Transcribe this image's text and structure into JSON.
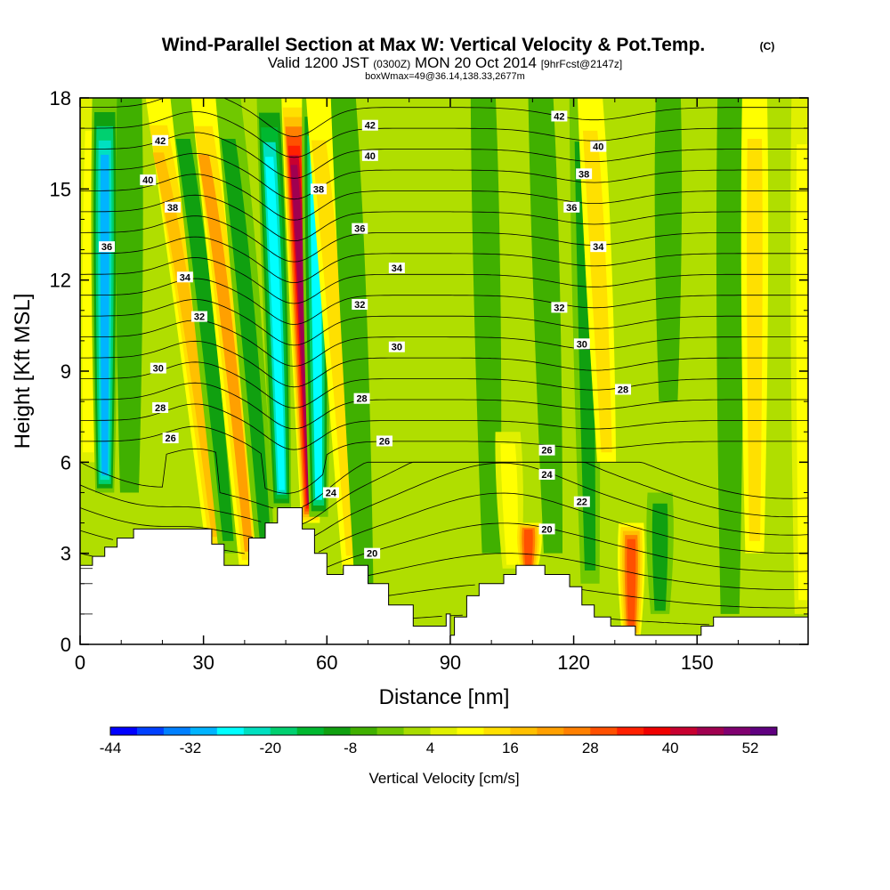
{
  "chart_data": {
    "type": "heatmap",
    "title": "Wind-Parallel Section at Max W: Vertical Velocity & Pot.Temp.",
    "title_mark": "(C)",
    "subtitle_prefix": "Valid 1200 JST",
    "subtitle_utc": "(0300Z)",
    "subtitle_date": "MON 20 Oct 2014",
    "subtitle_fcst": "[9hrFcst@2147z]",
    "subtitle2": "boxWmax=49@36.14,138.33,2677m",
    "xlabel": "Distance [nm]",
    "ylabel": "Height [Kft MSL]",
    "xlim": [
      0,
      177
    ],
    "ylim": [
      0,
      18
    ],
    "x_ticks": [
      "0",
      "30",
      "60",
      "90",
      "120",
      "150"
    ],
    "x_tick_values": [
      0,
      30,
      60,
      90,
      120,
      150
    ],
    "y_ticks": [
      "0",
      "3",
      "6",
      "9",
      "12",
      "15",
      "18"
    ],
    "y_tick_values": [
      0,
      3,
      6,
      9,
      12,
      15,
      18
    ],
    "colorbar": {
      "label": "Vertical Velocity [cm/s]",
      "tick_labels": [
        "-44",
        "-32",
        "-20",
        "-8",
        "4",
        "16",
        "28",
        "40",
        "52"
      ],
      "min": -44,
      "max": 56,
      "step": 4,
      "colors": [
        "#0000ff",
        "#0040ff",
        "#0080ff",
        "#00b4ff",
        "#00ffff",
        "#00e0c0",
        "#00d070",
        "#00b830",
        "#10a010",
        "#40b000",
        "#70c800",
        "#a8dc00",
        "#e0f000",
        "#ffff00",
        "#ffe000",
        "#ffc000",
        "#ffa000",
        "#ff8000",
        "#ff5000",
        "#ff2000",
        "#f00000",
        "#c80030",
        "#a00050",
        "#800070",
        "#600080"
      ]
    },
    "streaks": [
      {
        "x_bottom": 2,
        "x_top": 3,
        "y_bottom": 6,
        "y_top": 18,
        "w": 9
      },
      {
        "x_bottom": 6,
        "x_top": 6,
        "y_bottom": 5,
        "y_top": 18,
        "w": -30
      },
      {
        "x_bottom": 12,
        "x_top": 12,
        "y_bottom": 5,
        "y_top": 18,
        "w": -6
      },
      {
        "x_bottom": 33,
        "x_top": 19,
        "y_bottom": 3,
        "y_top": 18,
        "w": 18
      },
      {
        "x_bottom": 36,
        "x_top": 25,
        "y_bottom": 3,
        "y_top": 18,
        "w": -10
      },
      {
        "x_bottom": 41,
        "x_top": 30,
        "y_bottom": 2.5,
        "y_top": 18,
        "w": 20
      },
      {
        "x_bottom": 45,
        "x_top": 36,
        "y_bottom": 3,
        "y_top": 18,
        "w": -12
      },
      {
        "x_bottom": 49,
        "x_top": 46,
        "y_bottom": 4.5,
        "y_top": 18,
        "w": -28
      },
      {
        "x_bottom": 56,
        "x_top": 52,
        "y_bottom": 4,
        "y_top": 18,
        "w": 46
      },
      {
        "x_bottom": 58,
        "x_top": 57,
        "y_bottom": 4.2,
        "y_top": 18,
        "w": -26
      },
      {
        "x_bottom": 66,
        "x_top": 58,
        "y_bottom": 2.5,
        "y_top": 18,
        "w": 14
      },
      {
        "x_bottom": 69,
        "x_top": 64,
        "y_bottom": 2,
        "y_top": 18,
        "w": -6
      },
      {
        "x_bottom": 100,
        "x_top": 98,
        "y_bottom": 3,
        "y_top": 18,
        "w": -8
      },
      {
        "x_bottom": 105,
        "x_top": 104,
        "y_bottom": 2.5,
        "y_top": 7,
        "w": 10
      },
      {
        "x_bottom": 109,
        "x_top": 109,
        "y_bottom": 2.5,
        "y_top": 4,
        "w": 30
      },
      {
        "x_bottom": 115,
        "x_top": 112,
        "y_bottom": 3,
        "y_top": 18,
        "w": -8
      },
      {
        "x_bottom": 124,
        "x_top": 122,
        "y_bottom": 2,
        "y_top": 18,
        "w": -10
      },
      {
        "x_bottom": 128,
        "x_top": 124,
        "y_bottom": 6,
        "y_top": 18,
        "w": 14
      },
      {
        "x_bottom": 134,
        "x_top": 134,
        "y_bottom": 0.3,
        "y_top": 4,
        "w": 30
      },
      {
        "x_bottom": 141,
        "x_top": 141,
        "y_bottom": 1,
        "y_top": 5,
        "w": -10
      },
      {
        "x_bottom": 143,
        "x_top": 143,
        "y_bottom": 8,
        "y_top": 18,
        "w": -8
      },
      {
        "x_bottom": 158,
        "x_top": 158,
        "y_bottom": 1,
        "y_top": 18,
        "w": -6
      },
      {
        "x_bottom": 164,
        "x_top": 164,
        "y_bottom": 3,
        "y_top": 18,
        "w": 12
      },
      {
        "x_bottom": 176,
        "x_top": 176,
        "y_bottom": 1,
        "y_top": 18,
        "w": 10
      }
    ],
    "terrain": [
      [
        0,
        2.6
      ],
      [
        3,
        2.6
      ],
      [
        3,
        2.9
      ],
      [
        6,
        2.9
      ],
      [
        6,
        3.2
      ],
      [
        9,
        3.2
      ],
      [
        9,
        3.5
      ],
      [
        13,
        3.5
      ],
      [
        13,
        3.8
      ],
      [
        32,
        3.8
      ],
      [
        32,
        3.3
      ],
      [
        35,
        3.3
      ],
      [
        35,
        2.6
      ],
      [
        41,
        2.6
      ],
      [
        41,
        3.5
      ],
      [
        45,
        3.5
      ],
      [
        45,
        4.0
      ],
      [
        48,
        4.0
      ],
      [
        48,
        4.5
      ],
      [
        54,
        4.5
      ],
      [
        54,
        3.8
      ],
      [
        57,
        3.8
      ],
      [
        57,
        3.0
      ],
      [
        60,
        3.0
      ],
      [
        60,
        2.3
      ],
      [
        64,
        2.3
      ],
      [
        64,
        2.6
      ],
      [
        70,
        2.6
      ],
      [
        70,
        2.0
      ],
      [
        75,
        2.0
      ],
      [
        75,
        1.3
      ],
      [
        81,
        1.3
      ],
      [
        81,
        0.6
      ],
      [
        89,
        0.6
      ],
      [
        89,
        1.0
      ],
      [
        90,
        1.0
      ],
      [
        90,
        0.3
      ],
      [
        91,
        0.3
      ],
      [
        91,
        0.9
      ],
      [
        94,
        0.9
      ],
      [
        94,
        1.6
      ],
      [
        97,
        1.6
      ],
      [
        97,
        2.0
      ],
      [
        103,
        2.0
      ],
      [
        103,
        2.3
      ],
      [
        106,
        2.3
      ],
      [
        106,
        2.6
      ],
      [
        113,
        2.6
      ],
      [
        113,
        2.3
      ],
      [
        119,
        2.3
      ],
      [
        119,
        1.9
      ],
      [
        122,
        1.9
      ],
      [
        122,
        1.3
      ],
      [
        125,
        1.3
      ],
      [
        125,
        0.9
      ],
      [
        129,
        0.9
      ],
      [
        129,
        0.6
      ],
      [
        135,
        0.6
      ],
      [
        135,
        0.3
      ],
      [
        151,
        0.3
      ],
      [
        151,
        0.6
      ],
      [
        154,
        0.6
      ],
      [
        154,
        0.9
      ],
      [
        177,
        0.9
      ]
    ],
    "pot_temp_levels": [
      18,
      19,
      20,
      21,
      22,
      23,
      24,
      25,
      26,
      27,
      28,
      29,
      30,
      31,
      32,
      33,
      34,
      35,
      36,
      37,
      38,
      39,
      40,
      41,
      42,
      43
    ],
    "contour_labels": [
      {
        "text": "42",
        "x": 19.5,
        "y": 16.6
      },
      {
        "text": "40",
        "x": 16.5,
        "y": 15.3
      },
      {
        "text": "38",
        "x": 22.5,
        "y": 14.4
      },
      {
        "text": "36",
        "x": 6.5,
        "y": 13.1
      },
      {
        "text": "34",
        "x": 25.5,
        "y": 12.1
      },
      {
        "text": "32",
        "x": 29,
        "y": 10.8
      },
      {
        "text": "30",
        "x": 19,
        "y": 9.1
      },
      {
        "text": "28",
        "x": 19.5,
        "y": 7.8
      },
      {
        "text": "26",
        "x": 22,
        "y": 6.8
      },
      {
        "text": "38",
        "x": 58,
        "y": 15.0
      },
      {
        "text": "36",
        "x": 68,
        "y": 13.7
      },
      {
        "text": "34",
        "x": 77,
        "y": 12.4
      },
      {
        "text": "32",
        "x": 68,
        "y": 11.2
      },
      {
        "text": "30",
        "x": 77,
        "y": 9.8
      },
      {
        "text": "28",
        "x": 68.5,
        "y": 8.1
      },
      {
        "text": "26",
        "x": 74,
        "y": 6.7
      },
      {
        "text": "24",
        "x": 61,
        "y": 5.0
      },
      {
        "text": "20",
        "x": 71,
        "y": 3.0
      },
      {
        "text": "42",
        "x": 70.5,
        "y": 17.1
      },
      {
        "text": "40",
        "x": 70.5,
        "y": 16.1
      },
      {
        "text": "42",
        "x": 116.5,
        "y": 17.4
      },
      {
        "text": "40",
        "x": 126,
        "y": 16.4
      },
      {
        "text": "38",
        "x": 122.5,
        "y": 15.5
      },
      {
        "text": "36",
        "x": 119.5,
        "y": 14.4
      },
      {
        "text": "34",
        "x": 126,
        "y": 13.1
      },
      {
        "text": "32",
        "x": 116.5,
        "y": 11.1
      },
      {
        "text": "30",
        "x": 122,
        "y": 9.9
      },
      {
        "text": "28",
        "x": 132,
        "y": 8.4
      },
      {
        "text": "26",
        "x": 113.5,
        "y": 6.4
      },
      {
        "text": "24",
        "x": 113.5,
        "y": 5.6
      },
      {
        "text": "22",
        "x": 122,
        "y": 4.7
      },
      {
        "text": "20",
        "x": 113.5,
        "y": 3.8
      }
    ]
  }
}
